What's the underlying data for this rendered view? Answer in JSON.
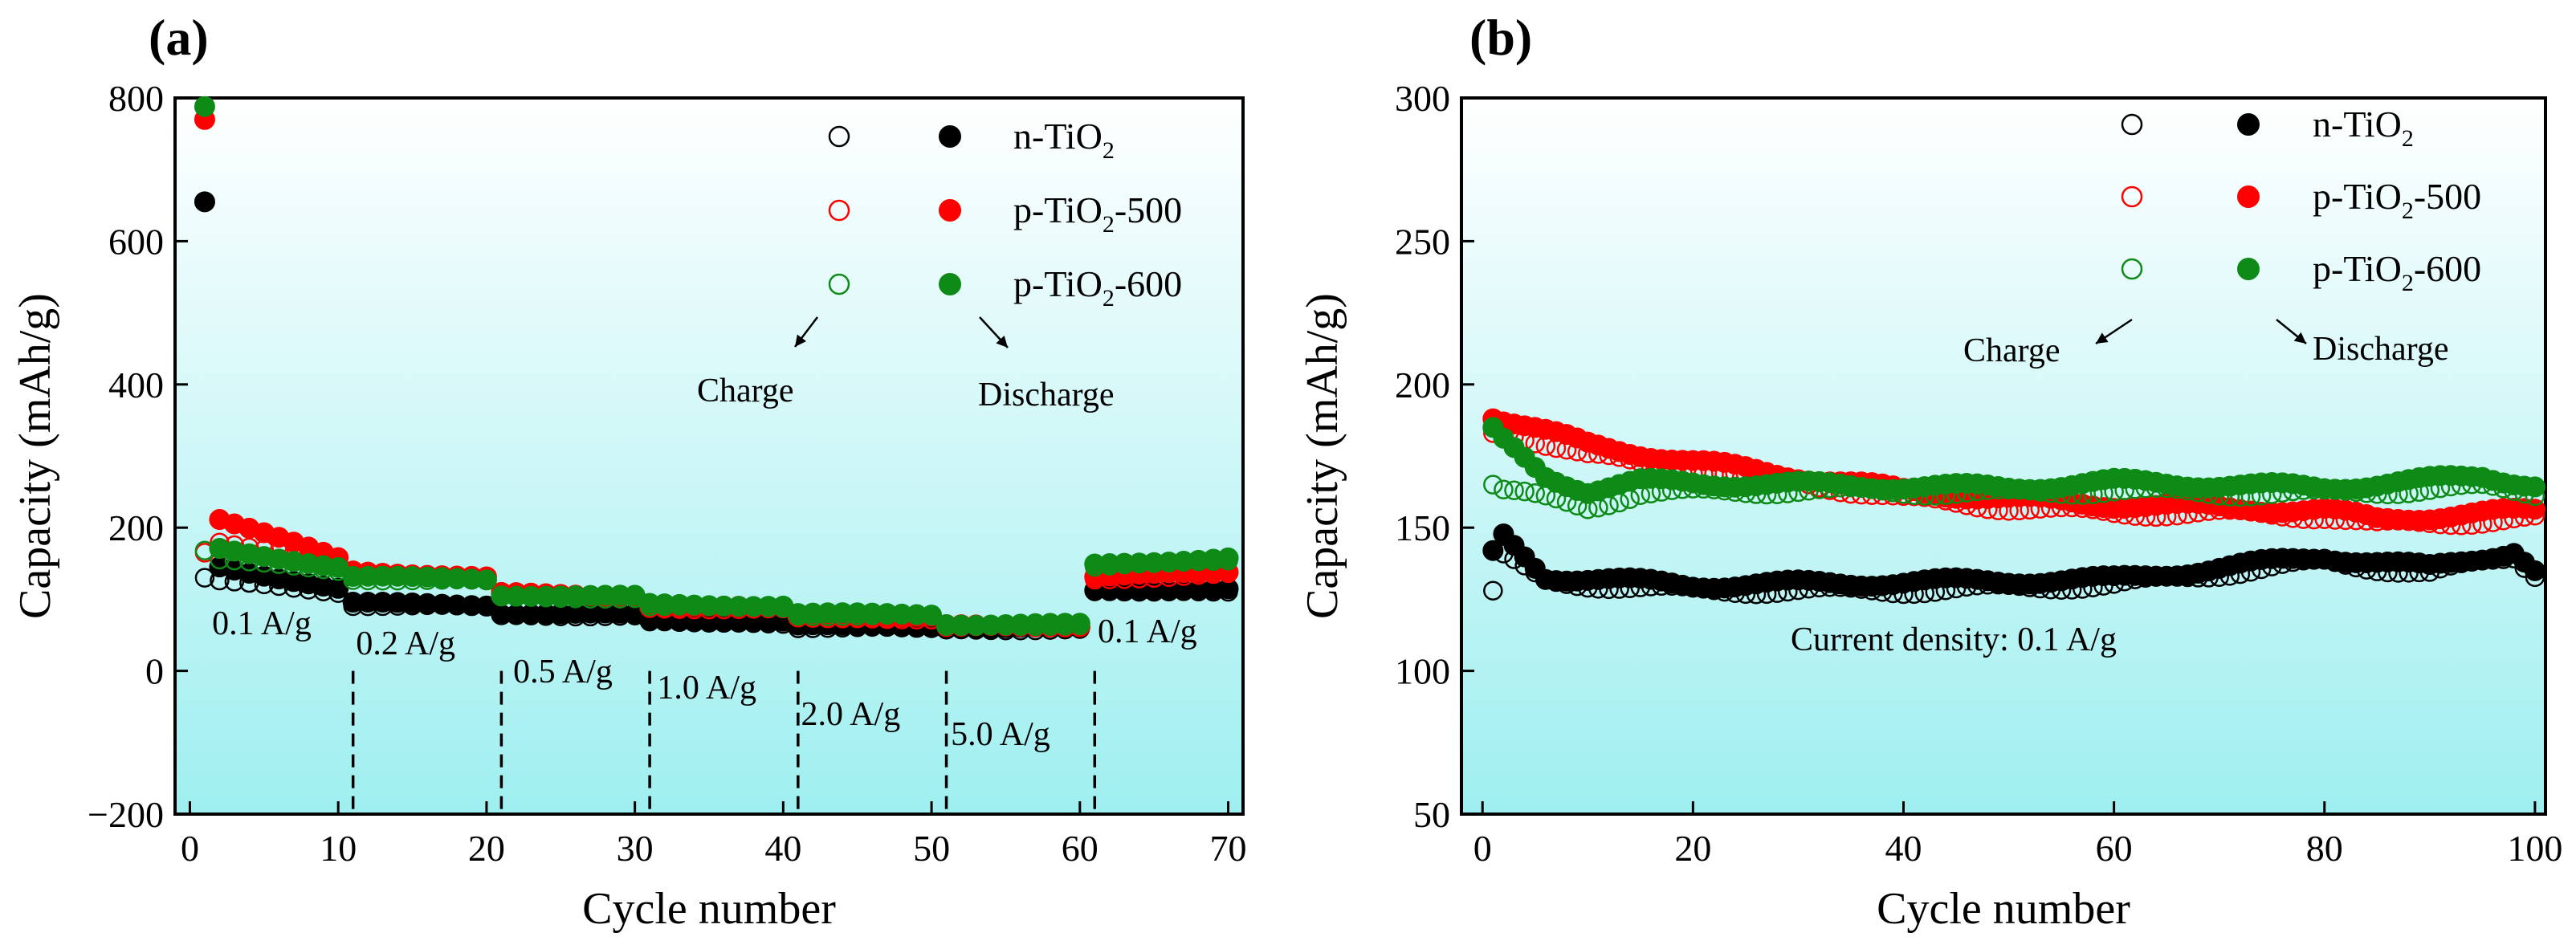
{
  "chart_data": [
    {
      "panel": "(a)",
      "type": "scatter",
      "xlabel": "Cycle number",
      "ylabel": "Capacity (mAh/g)",
      "xlim": [
        -1,
        71
      ],
      "ylim": [
        -200,
        800
      ],
      "xticks": [
        "0",
        "10",
        "20",
        "30",
        "40",
        "50",
        "60",
        "70"
      ],
      "yticks": [
        "−200",
        "0",
        "200",
        "400",
        "600",
        "800"
      ],
      "legend": {
        "items": [
          {
            "main": "n-TiO",
            "sub": "2",
            "suffix": ""
          },
          {
            "main": "p-TiO",
            "sub": "2",
            "suffix": "-500"
          },
          {
            "main": "p-TiO",
            "sub": "2",
            "suffix": "-600"
          }
        ],
        "charge_label": "Charge",
        "discharge_label": "Discharge"
      },
      "annotations": {
        "rate_labels": [
          "0.1 A/g",
          "0.2 A/g",
          "0.5 A/g",
          "1.0 A/g",
          "2.0 A/g",
          "5.0 A/g",
          "0.1 A/g"
        ],
        "dividers_at_cycle": [
          11,
          21,
          31,
          41,
          51,
          61
        ]
      },
      "series": [
        {
          "name": "n-TiO2",
          "color": "#000000",
          "first_charge": 130,
          "first_discharge": 655,
          "segments": [
            {
              "from": 2,
              "to": 10,
              "charge": [
                125,
                110
              ],
              "discharge": [
                145,
                115
              ]
            },
            {
              "from": 11,
              "to": 20,
              "charge": [
                92,
                90
              ],
              "discharge": [
                95,
                92
              ]
            },
            {
              "from": 21,
              "to": 30,
              "charge": [
                78,
                77
              ],
              "discharge": [
                80,
                79
              ]
            },
            {
              "from": 31,
              "to": 40,
              "charge": [
                68,
                67
              ],
              "discharge": [
                70,
                69
              ]
            },
            {
              "from": 41,
              "to": 50,
              "charge": [
                61,
                60
              ],
              "discharge": [
                63,
                62
              ]
            },
            {
              "from": 51,
              "to": 60,
              "charge": [
                58,
                58
              ],
              "discharge": [
                60,
                60
              ]
            },
            {
              "from": 61,
              "to": 70,
              "charge": [
                110,
                112
              ],
              "discharge": [
                112,
                114
              ]
            }
          ]
        },
        {
          "name": "p-TiO2-500",
          "color": "#ff0000",
          "first_charge": 165,
          "first_discharge": 770,
          "segments": [
            {
              "from": 2,
              "to": 10,
              "charge": [
                180,
                155
              ],
              "discharge": [
                212,
                158
              ]
            },
            {
              "from": 11,
              "to": 20,
              "charge": [
                135,
                128
              ],
              "discharge": [
                140,
                130
              ]
            },
            {
              "from": 21,
              "to": 30,
              "charge": [
                105,
                103
              ],
              "discharge": [
                108,
                105
              ]
            },
            {
              "from": 31,
              "to": 40,
              "charge": [
                88,
                86
              ],
              "discharge": [
                90,
                88
              ]
            },
            {
              "from": 41,
              "to": 50,
              "charge": [
                74,
                73
              ],
              "discharge": [
                76,
                75
              ]
            },
            {
              "from": 51,
              "to": 60,
              "charge": [
                62,
                62
              ],
              "discharge": [
                63,
                63
              ]
            },
            {
              "from": 61,
              "to": 70,
              "charge": [
                128,
                135
              ],
              "discharge": [
                132,
                138
              ]
            }
          ]
        },
        {
          "name": "p-TiO2-600",
          "color": "#0e8a16",
          "first_charge": 168,
          "first_discharge": 788,
          "segments": [
            {
              "from": 2,
              "to": 10,
              "charge": [
                155,
                140
              ],
              "discharge": [
                170,
                145
              ]
            },
            {
              "from": 11,
              "to": 20,
              "charge": [
                128,
                126
              ],
              "discharge": [
                132,
                128
              ]
            },
            {
              "from": 21,
              "to": 30,
              "charge": [
                103,
                102
              ],
              "discharge": [
                106,
                104
              ]
            },
            {
              "from": 31,
              "to": 40,
              "charge": [
                90,
                89
              ],
              "discharge": [
                93,
                91
              ]
            },
            {
              "from": 41,
              "to": 50,
              "charge": [
                78,
                77
              ],
              "discharge": [
                80,
                79
              ]
            },
            {
              "from": 51,
              "to": 60,
              "charge": [
                64,
                64
              ],
              "discharge": [
                65,
                65
              ]
            },
            {
              "from": 61,
              "to": 70,
              "charge": [
                145,
                155
              ],
              "discharge": [
                148,
                158
              ]
            }
          ]
        }
      ]
    },
    {
      "panel": "(b)",
      "type": "scatter",
      "xlabel": "Cycle number",
      "ylabel": "Capacity (mAh/g)",
      "xlim": [
        -2,
        101
      ],
      "ylim": [
        50,
        300
      ],
      "xticks": [
        "0",
        "20",
        "40",
        "60",
        "80",
        "100"
      ],
      "yticks": [
        "50",
        "100",
        "150",
        "200",
        "250",
        "300"
      ],
      "legend": {
        "items": [
          {
            "main": "n-TiO",
            "sub": "2",
            "suffix": ""
          },
          {
            "main": "p-TiO",
            "sub": "2",
            "suffix": "-500"
          },
          {
            "main": "p-TiO",
            "sub": "2",
            "suffix": "-600"
          }
        ],
        "charge_label": "Charge",
        "discharge_label": "Discharge"
      },
      "annotations": {
        "note": "Current density: 0.1 A/g"
      },
      "series": [
        {
          "name": "n-TiO2",
          "color": "#000000",
          "first_charge": 128,
          "first_discharge": 142,
          "charge_keypoints": [
            [
              2,
              140
            ],
            [
              6,
              131
            ],
            [
              20,
              128
            ],
            [
              40,
              128
            ],
            [
              60,
              130
            ],
            [
              70,
              134
            ],
            [
              80,
              138
            ],
            [
              90,
              134
            ],
            [
              98,
              140
            ],
            [
              100,
              134
            ]
          ],
          "discharge_keypoints": [
            [
              2,
              147
            ],
            [
              6,
              133
            ],
            [
              20,
              130
            ],
            [
              40,
              131
            ],
            [
              60,
              132
            ],
            [
              70,
              136
            ],
            [
              80,
              140
            ],
            [
              90,
              136
            ],
            [
              98,
              142
            ],
            [
              100,
              135
            ]
          ]
        },
        {
          "name": "p-TiO2-500",
          "color": "#ff0000",
          "first_charge": 183,
          "first_discharge": 188,
          "charge_keypoints": [
            [
              2,
              184
            ],
            [
              10,
              175
            ],
            [
              20,
              170
            ],
            [
              30,
              166
            ],
            [
              40,
              160
            ],
            [
              50,
              157
            ],
            [
              60,
              155
            ],
            [
              70,
              155
            ],
            [
              80,
              154
            ],
            [
              85,
              151
            ],
            [
              100,
              153
            ]
          ],
          "discharge_keypoints": [
            [
              2,
              188
            ],
            [
              10,
              179
            ],
            [
              20,
              173
            ],
            [
              30,
              168
            ],
            [
              40,
              163
            ],
            [
              50,
              160
            ],
            [
              60,
              158
            ],
            [
              70,
              157
            ],
            [
              80,
              156
            ],
            [
              85,
              153
            ],
            [
              100,
              156
            ]
          ]
        },
        {
          "name": "p-TiO2-600",
          "color": "#0e8a16",
          "first_charge": 165,
          "first_discharge": 185,
          "charge_keypoints": [
            [
              2,
              163
            ],
            [
              10,
              157
            ],
            [
              15,
              162
            ],
            [
              30,
              163
            ],
            [
              50,
              162
            ],
            [
              60,
              163
            ],
            [
              70,
              162
            ],
            [
              80,
              162
            ],
            [
              95,
              164
            ],
            [
              100,
              162
            ]
          ],
          "discharge_keypoints": [
            [
              2,
              180
            ],
            [
              6,
              168
            ],
            [
              10,
              163
            ],
            [
              15,
              166
            ],
            [
              30,
              165
            ],
            [
              50,
              164
            ],
            [
              60,
              166
            ],
            [
              70,
              165
            ],
            [
              80,
              164
            ],
            [
              95,
              168
            ],
            [
              100,
              165
            ]
          ]
        }
      ]
    }
  ]
}
